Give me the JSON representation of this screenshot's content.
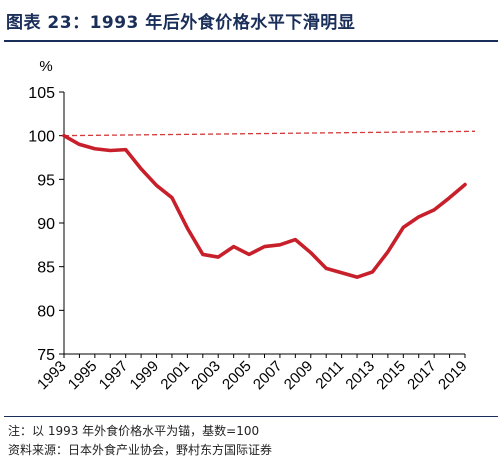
{
  "header": {
    "title": "图表 23：1993 年后外食价格水平下滑明显"
  },
  "footer": {
    "note": "注：以 1993 年外食价格水平为锚，基数=100",
    "source": "资料来源：日本外食产业协会，野村东方国际证券"
  },
  "chart_data": {
    "type": "line",
    "title": "",
    "xlabel": "",
    "ylabel": "%",
    "ylim": [
      75,
      105
    ],
    "yticks": [
      75,
      80,
      85,
      90,
      95,
      100,
      105
    ],
    "xlim": [
      1993,
      2019
    ],
    "xticks": [
      "1993",
      "1995",
      "1997",
      "1999",
      "2001",
      "2003",
      "2005",
      "2007",
      "2009",
      "2011",
      "2013",
      "2015",
      "2017",
      "2019"
    ],
    "grid": false,
    "legend": "none",
    "x": [
      1993,
      1994,
      1995,
      1996,
      1997,
      1998,
      1999,
      2000,
      2001,
      2002,
      2003,
      2004,
      2005,
      2006,
      2007,
      2008,
      2009,
      2010,
      2011,
      2012,
      2013,
      2014,
      2015,
      2016,
      2017,
      2018,
      2019
    ],
    "series": [
      {
        "values": [
          100.0,
          99.0,
          98.5,
          98.3,
          98.4,
          96.2,
          94.3,
          92.9,
          89.4,
          86.4,
          86.1,
          87.3,
          86.4,
          87.3,
          87.5,
          88.1,
          86.6,
          84.8,
          84.3,
          83.8,
          84.4,
          86.7,
          89.5,
          90.7,
          91.5,
          92.9,
          94.4
        ],
        "color": "#c8202a"
      }
    ],
    "reference_line": {
      "y_start": 100.0,
      "y_end": 100.5,
      "color": "#d23a3a"
    }
  }
}
